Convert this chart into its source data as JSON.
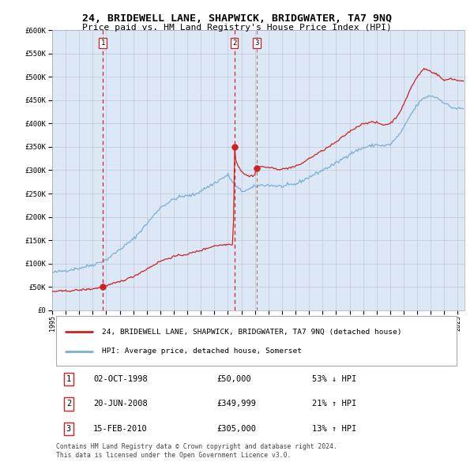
{
  "title": "24, BRIDEWELL LANE, SHAPWICK, BRIDGWATER, TA7 9NQ",
  "subtitle": "Price paid vs. HM Land Registry's House Price Index (HPI)",
  "legend_line1": "24, BRIDEWELL LANE, SHAPWICK, BRIDGWATER, TA7 9NQ (detached house)",
  "legend_line2": "HPI: Average price, detached house, Somerset",
  "footer1": "Contains HM Land Registry data © Crown copyright and database right 2024.",
  "footer2": "This data is licensed under the Open Government Licence v3.0.",
  "transactions": [
    {
      "num": 1,
      "date": "02-OCT-1998",
      "price": "£50,000",
      "pct": "53%",
      "dir": "↓",
      "x_year": 1998.75,
      "y_val": 50000
    },
    {
      "num": 2,
      "date": "20-JUN-2008",
      "price": "£349,999",
      "pct": "21%",
      "dir": "↑",
      "x_year": 2008.47,
      "y_val": 349999
    },
    {
      "num": 3,
      "date": "15-FEB-2010",
      "price": "£305,000",
      "pct": "13%",
      "dir": "↑",
      "x_year": 2010.12,
      "y_val": 305000
    }
  ],
  "x_min": 1995.0,
  "x_max": 2025.5,
  "y_min": 0,
  "y_max": 600000,
  "y_ticks": [
    0,
    50000,
    100000,
    150000,
    200000,
    250000,
    300000,
    350000,
    400000,
    450000,
    500000,
    550000,
    600000
  ],
  "x_ticks": [
    1995,
    1996,
    1997,
    1998,
    1999,
    2000,
    2001,
    2002,
    2003,
    2004,
    2005,
    2006,
    2007,
    2008,
    2009,
    2010,
    2011,
    2012,
    2013,
    2014,
    2015,
    2016,
    2017,
    2018,
    2019,
    2020,
    2021,
    2022,
    2023,
    2024,
    2025
  ],
  "hpi_color": "#7bafd4",
  "price_color": "#cc2222",
  "bg_color": "#dce8f5",
  "grid_color": "#c0c8d8",
  "marker_color": "#cc2222"
}
